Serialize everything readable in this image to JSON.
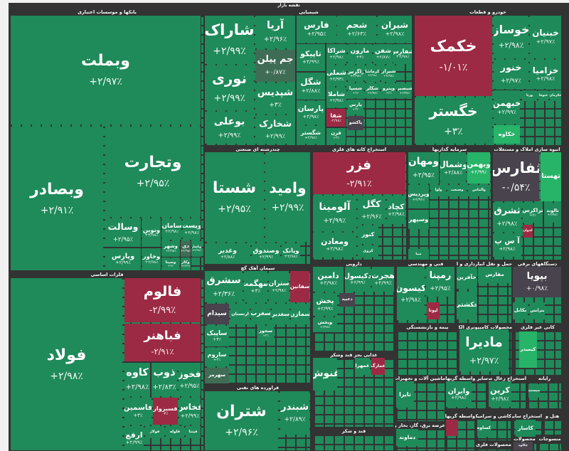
{
  "map_title": "نقشه بازار",
  "colors": {
    "positive": "#1f8a5a",
    "negative": "#9c2a44",
    "neutral": "#48434d",
    "strong_positive": "#27b368",
    "weak_positive": "#3f6c55",
    "background": "#333333"
  },
  "sectors": [
    {
      "title": "بانکها و موسسات اعتباری"
    },
    {
      "title": "شیمیایی"
    },
    {
      "title": "خودرو و قطعات"
    },
    {
      "title": "چندرشته ای صنعتی"
    },
    {
      "title": "استخراج کانه های فلزی"
    },
    {
      "title": "سرمایه گذاریها"
    },
    {
      "title": "انبوه سازی املاک و مستغلات"
    },
    {
      "title": "فلزات اساسی"
    },
    {
      "title": "سیمان آهک گچ"
    },
    {
      "title": "فراورده های نفتی"
    },
    {
      "title": "دارویی"
    },
    {
      "title": "فنی و مهندسی"
    },
    {
      "title": "حمل و نقل انبارداری و ارتباطات"
    },
    {
      "title": "دستگاههای برقی"
    },
    {
      "title": "غذایی بجز قند وشکر"
    },
    {
      "title": "قند و شکر"
    },
    {
      "title": "بیمه و بازنشستگی"
    },
    {
      "title": "محصولات کامپیوتری الکترونیکی و"
    },
    {
      "title": "کانی غیر فلزی"
    },
    {
      "title": "ماشین آلات و تجهیزات"
    },
    {
      "title": "سایر واسطه گریهای مالی"
    },
    {
      "title": "استخراج زغال سنگ"
    },
    {
      "title": "رایانه"
    },
    {
      "title": "واسطه گریهای"
    },
    {
      "title": "کاشی و سرامیک"
    },
    {
      "title": "استخراج سایر"
    },
    {
      "title": "هتل و"
    },
    {
      "title": "عرضه برق، گاز، بخار و آب گرم"
    },
    {
      "title": "محصولات فلزی"
    },
    {
      "title": "محصولات"
    },
    {
      "title": "منسوجات"
    }
  ],
  "tiles": [
    {
      "symbol": "وبملت",
      "change": "+۲/۹۷٪",
      "state": "p"
    },
    {
      "symbol": "وتجارت",
      "change": "+۲/۹۵٪",
      "state": "p"
    },
    {
      "symbol": "وبصادر",
      "change": "+۲/۹۱٪",
      "state": "p"
    },
    {
      "symbol": "وسالت",
      "change": "+۲/۹۵٪",
      "state": "p"
    },
    {
      "symbol": "ونوین",
      "change": "+۲/۹۸٪",
      "state": "p"
    },
    {
      "symbol": "سامان",
      "change": "+۲/۹۸٪",
      "state": "p"
    },
    {
      "symbol": "وپست",
      "change": "+۲/۹۸٪",
      "state": "p"
    },
    {
      "symbol": "وپارس",
      "change": "+۲/۹۹٪",
      "state": "p"
    },
    {
      "symbol": "وخاور",
      "change": "+۲/۹۸٪",
      "state": "p"
    },
    {
      "symbol": "وشهر",
      "change": "+۲/۹۸٪",
      "state": "p"
    },
    {
      "symbol": "دی",
      "change": "+۲/۹۸٪",
      "state": "m"
    },
    {
      "symbol": "وپاسار",
      "change": "+۲/۹۸٪",
      "state": "p"
    },
    {
      "symbol": "وسینا",
      "change": "+۳٪",
      "state": "p"
    },
    {
      "symbol": "وکار",
      "change": "+۲/۹۹٪",
      "state": "p"
    },
    {
      "symbol": "شاراک",
      "change": "+۲/۹۹٪",
      "state": "p"
    },
    {
      "symbol": "نوری",
      "change": "+۲/۹۹٪",
      "state": "p"
    },
    {
      "symbol": "بوعلی",
      "change": "+۲/۹۹٪",
      "state": "p"
    },
    {
      "symbol": "آریا",
      "change": "+۲/۹۶٪",
      "state": "p"
    },
    {
      "symbol": "جم پیلن",
      "change": "+۰/۸۷٪",
      "state": "m"
    },
    {
      "symbol": "شپدیس",
      "change": "+۳٪",
      "state": "p"
    },
    {
      "symbol": "شخارک",
      "change": "+۲/۹۹٪",
      "state": "p"
    },
    {
      "symbol": "فارس",
      "change": "+۲/۹۵٪",
      "state": "p"
    },
    {
      "symbol": "شجم",
      "change": "+۲/۶۳٪",
      "state": "p"
    },
    {
      "symbol": "شیران",
      "change": "+۲/۹۸٪",
      "state": "p"
    },
    {
      "symbol": "تاپیکو",
      "change": "+۲/۹۹٪",
      "state": "p"
    },
    {
      "symbol": "شگل",
      "change": "+۲/۸۸٪",
      "state": "p"
    },
    {
      "symbol": "پارسان",
      "change": "+۲/۹۸٪",
      "state": "p"
    },
    {
      "symbol": "شگستر",
      "change": "+۲/۹۸٪",
      "state": "p"
    },
    {
      "symbol": "شراکا",
      "change": "+۲/۹۸٪",
      "state": "p"
    },
    {
      "symbol": "مارون",
      "change": "+۳٪",
      "state": "p"
    },
    {
      "symbol": "شفن",
      "change": "+۲/۸۷٪",
      "state": "p"
    },
    {
      "symbol": "شفارس",
      "change": "+۲/۹۸٪",
      "state": "p"
    },
    {
      "symbol": "شملی",
      "change": "+۲/۹۴٪",
      "state": "p"
    },
    {
      "symbol": "شاملا",
      "change": "+۲/۹۸٪",
      "state": "p"
    },
    {
      "symbol": "شفا",
      "change": "-۲/۹۸٪",
      "state": "n"
    },
    {
      "symbol": "قرن",
      "change": "+۳٪",
      "state": "p"
    },
    {
      "symbol": "زاگرس",
      "change": "+۲/۹۸٪",
      "state": "p"
    },
    {
      "symbol": "کرماشا",
      "change": "+۲/۹۸٪",
      "state": "p"
    },
    {
      "symbol": "شیراز",
      "change": "+۲/۹۸٪",
      "state": "p"
    },
    {
      "symbol": "شسپا",
      "change": "+۳٪",
      "state": "p"
    },
    {
      "symbol": "شکلر",
      "change": "+۲/۹۸٪",
      "state": "p"
    },
    {
      "symbol": "وپترو",
      "change": "+۳٪",
      "state": "p"
    },
    {
      "symbol": "شبصیر",
      "change": "+۲/۹۸٪",
      "state": "p"
    },
    {
      "symbol": "پارس",
      "change": "+۳٪",
      "state": "p"
    },
    {
      "symbol": "پاکشو",
      "change": "",
      "state": "d"
    },
    {
      "symbol": "خکمک",
      "change": "-۱/۰۱٪",
      "state": "n"
    },
    {
      "symbol": "خگستر",
      "change": "+۳٪",
      "state": "p"
    },
    {
      "symbol": "خوساز",
      "change": "+۲/۹۸٪",
      "state": "p"
    },
    {
      "symbol": "خبنیان",
      "change": "+۲/۹۷٪",
      "state": "p"
    },
    {
      "symbol": "خنور",
      "change": "+۲/۹۷٪",
      "state": "p"
    },
    {
      "symbol": "خزامیا",
      "change": "+۲/۹۸٪",
      "state": "p"
    },
    {
      "symbol": "خبهمن",
      "change": "+۲/۹۹٪",
      "state": "p"
    },
    {
      "symbol": "خکاوه",
      "change": "",
      "state": "b"
    },
    {
      "symbol": "ورنا",
      "change": "+۲/۹۸٪",
      "state": "p"
    },
    {
      "symbol": "خنوفا",
      "change": "",
      "state": "p"
    },
    {
      "symbol": "خکرمان",
      "change": "",
      "state": "p"
    },
    {
      "symbol": "شستا",
      "change": "+۲/۹۵٪",
      "state": "p"
    },
    {
      "symbol": "وامید",
      "change": "+۲/۹۹٪",
      "state": "p"
    },
    {
      "symbol": "وغدیر",
      "change": "+۲/۸۸٪",
      "state": "p"
    },
    {
      "symbol": "وصندوق",
      "change": "+۲/۹۹٪",
      "state": "p"
    },
    {
      "symbol": "وپانک",
      "change": "+۲/۹۸٪",
      "state": "p"
    },
    {
      "symbol": "فزر",
      "change": "-۲/۹۱٪",
      "state": "n"
    },
    {
      "symbol": "آلومینا",
      "change": "+۲/۹۹٪",
      "state": "p"
    },
    {
      "symbol": "کگل",
      "change": "+۲/۹۶٪",
      "state": "p"
    },
    {
      "symbol": "کچاد",
      "change": "+۲/۹۸٪",
      "state": "p"
    },
    {
      "symbol": "ومعادن",
      "change": "+۲/۹۸٪",
      "state": "p"
    },
    {
      "symbol": "کنور",
      "change": "",
      "state": "p"
    },
    {
      "symbol": "کروی",
      "change": "",
      "state": "p"
    },
    {
      "symbol": "ومهان",
      "change": "+۲/۹۵٪",
      "state": "p"
    },
    {
      "symbol": "وشمال",
      "change": "+۲/۸۸٪",
      "state": "p"
    },
    {
      "symbol": "وبهمن",
      "change": "+۲/۹۹٪",
      "state": "b"
    },
    {
      "symbol": "وپردیس",
      "change": "+۲/۹۶٪",
      "state": "p"
    },
    {
      "symbol": "ولوا",
      "change": "",
      "state": "p"
    },
    {
      "symbol": "وصنعت",
      "change": "",
      "state": "p"
    },
    {
      "symbol": "والماس",
      "change": "",
      "state": "p"
    },
    {
      "symbol": "وسپهر",
      "change": "",
      "state": "p"
    },
    {
      "symbol": "صبا",
      "change": "",
      "state": "p"
    },
    {
      "symbol": "ثفارس",
      "change": "-۰/۵۴٪",
      "state": "d"
    },
    {
      "symbol": "ثهستا",
      "change": "",
      "state": "b"
    },
    {
      "symbol": "ثشرق",
      "change": "+۲/۹۸٪",
      "state": "p"
    },
    {
      "symbol": "آ س پ",
      "change": "+۲/۹۸٪",
      "state": "p"
    },
    {
      "symbol": "تراکرس",
      "change": "+۳٪",
      "state": "p"
    },
    {
      "symbol": "ثالوند",
      "change": "+۲/۹۸٪",
      "state": "p"
    },
    {
      "symbol": "لحوان",
      "change": "",
      "state": "n"
    },
    {
      "symbol": "فولاد",
      "change": "+۲/۹۸٪",
      "state": "p"
    },
    {
      "symbol": "فالوم",
      "change": "-۲/۹۹٪",
      "state": "n"
    },
    {
      "symbol": "فباهنر",
      "change": "-۲/۹۱٪",
      "state": "n"
    },
    {
      "symbol": "کاوه",
      "change": "+۲/۹۸٪",
      "state": "p"
    },
    {
      "symbol": "ذوب",
      "change": "+۲/۸۳٪",
      "state": "p"
    },
    {
      "symbol": "فخوز",
      "change": "+۲/۹۵٪",
      "state": "p"
    },
    {
      "symbol": "فاسمین",
      "change": "+۳٪",
      "state": "p"
    },
    {
      "symbol": "فسبزوار",
      "change": "-۳٪",
      "state": "n"
    },
    {
      "symbol": "فخاس",
      "change": "+۲/۹۹٪",
      "state": "p"
    },
    {
      "symbol": "ارفع",
      "change": "+۲/۹۹٪",
      "state": "p"
    },
    {
      "symbol": "فولاژ",
      "change": "",
      "state": "p"
    },
    {
      "symbol": "فلوله",
      "change": "",
      "state": "p"
    },
    {
      "symbol": "فپنتا",
      "change": "",
      "state": "p"
    },
    {
      "symbol": "سشرق",
      "change": "+۲/۳۶٪",
      "state": "p"
    },
    {
      "symbol": "سهگمت",
      "change": "+۳٪",
      "state": "p"
    },
    {
      "symbol": "ستران",
      "change": "+۲/۹۸٪",
      "state": "p"
    },
    {
      "symbol": "سفانین",
      "change": "",
      "state": "n"
    },
    {
      "symbol": "سیدام",
      "change": "",
      "state": "d"
    },
    {
      "symbol": "ارتستان",
      "change": "",
      "state": "p"
    },
    {
      "symbol": "سغرب",
      "change": "",
      "state": "p"
    },
    {
      "symbol": "سغدیر",
      "change": "",
      "state": "p"
    },
    {
      "symbol": "سمازن",
      "change": "",
      "state": "p"
    },
    {
      "symbol": "ساپیک",
      "change": "+۳٪",
      "state": "p"
    },
    {
      "symbol": "سخوز",
      "change": "+۳٪",
      "state": "p"
    },
    {
      "symbol": "ساروم",
      "change": "+۳٪",
      "state": "p"
    },
    {
      "symbol": "سهرمز",
      "change": "",
      "state": "m"
    },
    {
      "symbol": "شتران",
      "change": "+۲/۹۶٪",
      "state": "p"
    },
    {
      "symbol": "شبندر",
      "change": "+۲/۸۹٪",
      "state": "p"
    },
    {
      "symbol": "دامین",
      "change": "+۲/۹۸٪",
      "state": "p"
    },
    {
      "symbol": "دکیسول",
      "change": "+۲/۹۹٪",
      "state": "p"
    },
    {
      "symbol": "هجرت",
      "change": "+۲/۹۹٪",
      "state": "p"
    },
    {
      "symbol": "پخش",
      "change": "+۲/۹۹٪",
      "state": "p"
    },
    {
      "symbol": "دعبید",
      "change": "",
      "state": "d"
    },
    {
      "symbol": "وپخش",
      "change": "+۲/۹۸٪",
      "state": "p"
    },
    {
      "symbol": "کیسون",
      "change": "+۲/۹۸٪",
      "state": "p"
    },
    {
      "symbol": "رمپنا",
      "change": "+۲/۹۵٪",
      "state": "p"
    },
    {
      "symbol": "لپوتا",
      "change": "",
      "state": "n"
    },
    {
      "symbol": "حآفرین",
      "change": "",
      "state": "p"
    },
    {
      "symbol": "مفارس",
      "change": "",
      "state": "p"
    },
    {
      "symbol": "حکشتی",
      "change": "",
      "state": "p"
    },
    {
      "symbol": "بپویا",
      "change": "+۰/۹۸٪",
      "state": "d"
    },
    {
      "symbol": "بکابل",
      "change": "",
      "state": "p"
    },
    {
      "symbol": "بترانس",
      "change": "",
      "state": "p"
    },
    {
      "symbol": "غنوش",
      "change": "",
      "state": "p"
    },
    {
      "symbol": "غمهرا",
      "change": "",
      "state": "p"
    },
    {
      "symbol": "غمارگ",
      "change": "",
      "state": "n"
    },
    {
      "symbol": "مادیرا",
      "change": "+۲/۹۷٪",
      "state": "p"
    },
    {
      "symbol": "کیمیدر",
      "change": "",
      "state": "b"
    },
    {
      "symbol": "تایرا",
      "change": "",
      "state": "p"
    },
    {
      "symbol": "وایران",
      "change": "+۲/۹۸٪",
      "state": "p"
    },
    {
      "symbol": "کرین",
      "change": "+۲/۹۸٪",
      "state": "p"
    },
    {
      "symbol": "سیستم",
      "change": "",
      "state": "p"
    },
    {
      "symbol": "",
      "change": "",
      "state": "n"
    },
    {
      "symbol": "کساوه",
      "change": "",
      "state": "p"
    },
    {
      "symbol": "کاسار",
      "change": "",
      "state": "p"
    },
    {
      "symbol": "دماوند",
      "change": "",
      "state": "p"
    },
    {
      "symbol": "چکاوه",
      "change": "",
      "state": "d"
    }
  ]
}
